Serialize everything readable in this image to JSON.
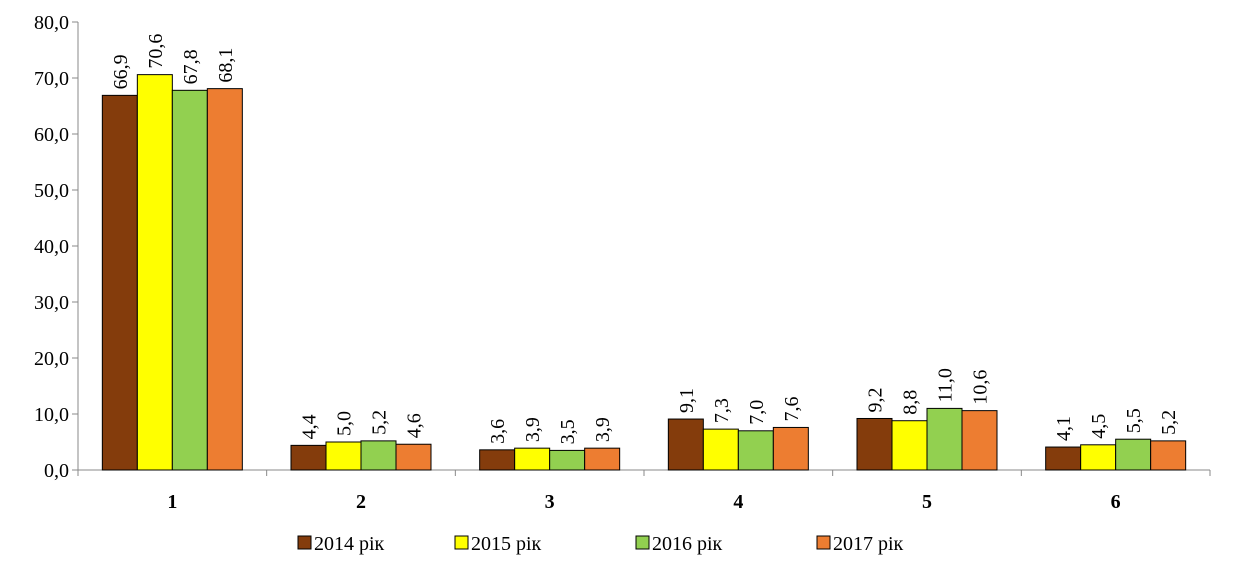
{
  "chart_data": {
    "type": "bar",
    "categories": [
      "1",
      "2",
      "3",
      "4",
      "5",
      "6"
    ],
    "series": [
      {
        "name": "2014 рік",
        "color": "#843c0c",
        "values": [
          66.9,
          4.4,
          3.6,
          9.1,
          9.2,
          4.1
        ],
        "value_labels": [
          "66,9",
          "4,4",
          "3,6",
          "9,1",
          "9,2",
          "4,1"
        ]
      },
      {
        "name": "2015 рік",
        "color": "#ffff00",
        "values": [
          70.6,
          5.0,
          3.9,
          7.3,
          8.8,
          4.5
        ],
        "value_labels": [
          "70,6",
          "5,0",
          "3,9",
          "7,3",
          "8,8",
          "4,5"
        ]
      },
      {
        "name": "2016 рік",
        "color": "#92d050",
        "values": [
          67.8,
          5.2,
          3.5,
          7.0,
          11.0,
          5.5
        ],
        "value_labels": [
          "67,8",
          "5,2",
          "3,5",
          "7,0",
          "11,0",
          "5,5"
        ]
      },
      {
        "name": "2017 рік",
        "color": "#ed7d31",
        "values": [
          68.1,
          4.6,
          3.9,
          7.6,
          10.6,
          5.2
        ],
        "value_labels": [
          "68,1",
          "4,6",
          "3,9",
          "7,6",
          "10,6",
          "5,2"
        ]
      }
    ],
    "ylim": [
      0,
      80
    ],
    "yticks": [
      {
        "value": 0,
        "label": "0,0"
      },
      {
        "value": 10,
        "label": "10,0"
      },
      {
        "value": 20,
        "label": "20,0"
      },
      {
        "value": 30,
        "label": "30,0"
      },
      {
        "value": 40,
        "label": "40,0"
      },
      {
        "value": 50,
        "label": "50,0"
      },
      {
        "value": 60,
        "label": "60,0"
      },
      {
        "value": 70,
        "label": "70,0"
      },
      {
        "value": 80,
        "label": "80,0"
      }
    ],
    "legend": "bottom"
  }
}
